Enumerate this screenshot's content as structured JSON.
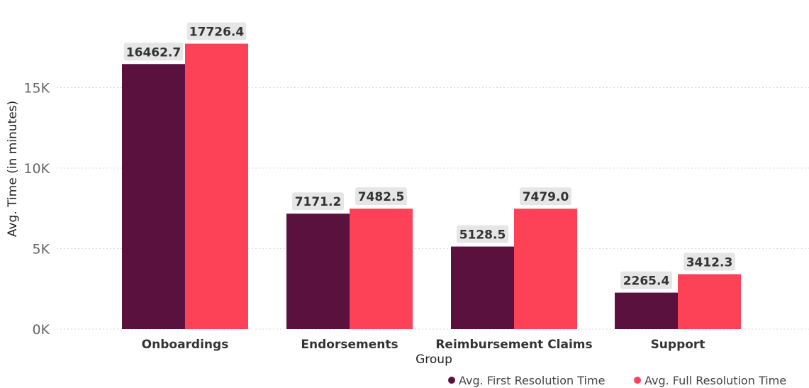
{
  "chart_data": {
    "type": "bar",
    "categories": [
      "Onboardings",
      "Endorsements",
      "Reimbursement Claims",
      "Support"
    ],
    "series": [
      {
        "name": "Avg. First Resolution Time",
        "values": [
          16462.7,
          7171.2,
          5128.5,
          2265.4
        ],
        "color": "#5b113e"
      },
      {
        "name": "Avg. Full Resolution Time",
        "values": [
          17726.4,
          7482.5,
          7479.0,
          3412.3
        ],
        "color": "#fd4156"
      }
    ],
    "data_labels": [
      [
        "16462.7",
        "7171.2",
        "5128.5",
        "2265.4"
      ],
      [
        "17726.4",
        "7482.5",
        "7479.0",
        "3412.3"
      ]
    ],
    "xlabel": "Group",
    "ylabel": "Avg. Time (in minutes)",
    "ylim": [
      0,
      18500
    ],
    "yticks": [
      0,
      5000,
      10000,
      15000
    ],
    "ytick_labels": [
      "0K",
      "5K",
      "10K",
      "15K"
    ],
    "grid": true,
    "legend_position": "bottom-right"
  }
}
